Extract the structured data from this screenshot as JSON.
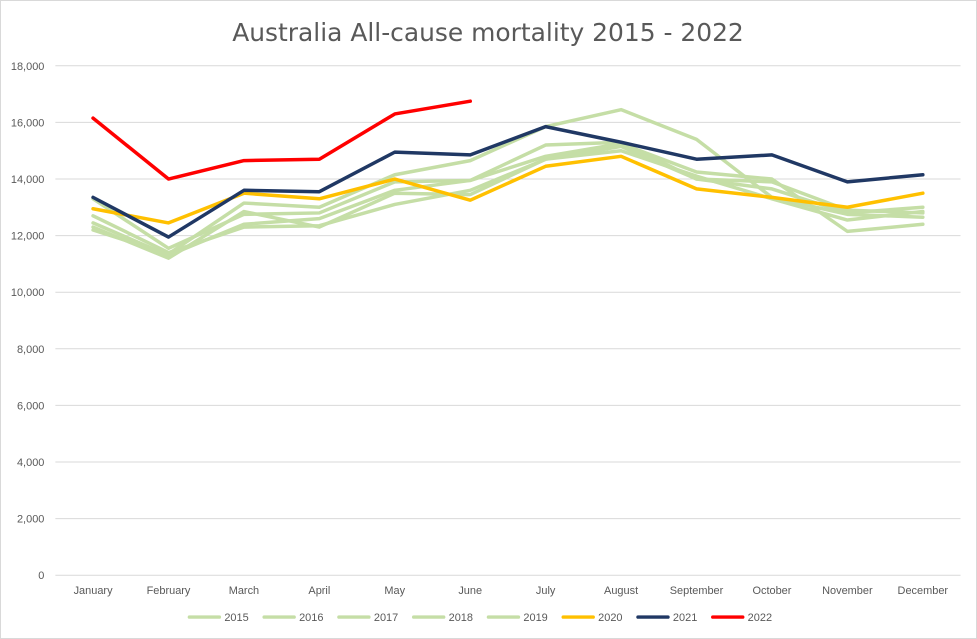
{
  "chart_data": {
    "type": "line",
    "title": "Australia All-cause mortality 2015 - 2022",
    "xlabel": "",
    "ylabel": "",
    "ylim": [
      0,
      18000
    ],
    "yticks": [
      0,
      2000,
      4000,
      6000,
      8000,
      10000,
      12000,
      14000,
      16000,
      18000
    ],
    "ytick_labels": [
      "0",
      "2,000",
      "4,000",
      "6,000",
      "8,000",
      "10,000",
      "12,000",
      "14,000",
      "16,000",
      "18,000"
    ],
    "categories": [
      "January",
      "February",
      "March",
      "April",
      "May",
      "June",
      "July",
      "August",
      "September",
      "October",
      "November",
      "December"
    ],
    "grid": "horizontal",
    "legend": "bottom",
    "series": [
      {
        "name": "2015",
        "color": "#c5dea6",
        "values": [
          12300,
          11200,
          12850,
          12300,
          13500,
          13450,
          14700,
          15150,
          14000,
          13900,
          12900,
          12800
        ]
      },
      {
        "name": "2016",
        "color": "#c5dea6",
        "values": [
          12700,
          11400,
          12300,
          12350,
          13100,
          13600,
          14700,
          15000,
          14100,
          13300,
          12550,
          12850
        ]
      },
      {
        "name": "2017",
        "color": "#c5dea6",
        "values": [
          12200,
          11350,
          13150,
          13000,
          14150,
          14650,
          15850,
          16450,
          15400,
          13350,
          12750,
          12650
        ]
      },
      {
        "name": "2018",
        "color": "#c5dea6",
        "values": [
          12450,
          11300,
          12400,
          12600,
          13600,
          13950,
          14800,
          15250,
          14250,
          14000,
          12150,
          12400
        ]
      },
      {
        "name": "2019",
        "color": "#c5dea6",
        "values": [
          13300,
          11550,
          12750,
          12800,
          13900,
          13950,
          15200,
          15300,
          14000,
          13650,
          12800,
          13000
        ]
      },
      {
        "name": "2020",
        "color": "#ffc000",
        "values": [
          12950,
          12450,
          13500,
          13300,
          14000,
          13250,
          14450,
          14800,
          13650,
          13350,
          13000,
          13500
        ]
      },
      {
        "name": "2021",
        "color": "#203864",
        "values": [
          13350,
          11950,
          13600,
          13550,
          14950,
          14850,
          15850,
          15300,
          14700,
          14850,
          13900,
          14150
        ]
      },
      {
        "name": "2022",
        "color": "#ff0000",
        "values": [
          16150,
          14000,
          14650,
          14700,
          16300,
          16750,
          null,
          null,
          null,
          null,
          null,
          null
        ]
      }
    ]
  }
}
